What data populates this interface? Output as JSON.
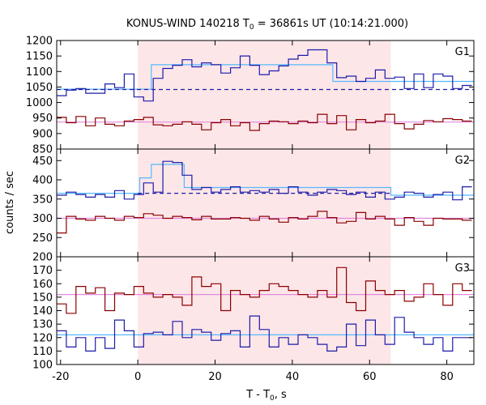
{
  "chart_data": {
    "type": "line",
    "title_main": "KONUS-WIND 140218 T",
    "title_sub": "0",
    "title_rest": " = 36861s UT (10:14:21.000)",
    "xlabel_main": "T - T",
    "xlabel_sub": "0",
    "xlabel_rest": ", s",
    "ylabel": "counts / sec",
    "xlim": [
      -21,
      87
    ],
    "xticks": [
      -20,
      0,
      20,
      40,
      60,
      80
    ],
    "shaded_interval": [
      0,
      65.5
    ],
    "colors": {
      "shade": "#fde6e8",
      "blue": "#1c1ca8",
      "dark_red": "#8b0000",
      "light_blue": "#55b8ff",
      "pink": "#e089e0"
    },
    "edges": [
      -21,
      -18.5,
      -16,
      -13.5,
      -11,
      -8.5,
      -6,
      -3.5,
      -1,
      1.5,
      4,
      6.5,
      9,
      11.5,
      14,
      16.5,
      19,
      21.5,
      24,
      26.5,
      29,
      31.5,
      34,
      36.5,
      39,
      41.5,
      44,
      46.5,
      49,
      51.5,
      54,
      56.5,
      59,
      61.5,
      64,
      66.5,
      69,
      71.5,
      74,
      76.5,
      79,
      81.5,
      84,
      86.5
    ],
    "panels": [
      {
        "label": "G1",
        "ylim": [
          850,
          1200
        ],
        "yticks": [
          850,
          900,
          950,
          1000,
          1050,
          1100,
          1150,
          1200
        ],
        "series": [
          {
            "color": "blue",
            "values": [
              1022,
              1040,
              1045,
              1030,
              1030,
              1060,
              1048,
              1092,
              1018,
              1005,
              1078,
              1110,
              1120,
              1138,
              1115,
              1128,
              1122,
              1095,
              1112,
              1150,
              1120,
              1090,
              1102,
              1118,
              1140,
              1152,
              1170,
              1170,
              1128,
              1080,
              1085,
              1068,
              1078,
              1105,
              1078,
              1082,
              1045,
              1092,
              1048,
              1092,
              1085,
              1045,
              1055
            ]
          },
          {
            "color": "dark_red",
            "values": [
              952,
              935,
              955,
              925,
              950,
              930,
              925,
              940,
              945,
              952,
              928,
              925,
              930,
              938,
              930,
              912,
              935,
              945,
              925,
              935,
              910,
              932,
              940,
              938,
              932,
              940,
              935,
              962,
              932,
              958,
              912,
              945,
              935,
              940,
              962,
              932,
              915,
              930,
              942,
              938,
              948,
              945,
              940
            ]
          }
        ],
        "step_fits": [
          {
            "color": "light_blue",
            "x_start": -21,
            "x_end": 87,
            "levels": [
              [
                -21,
                1043
              ],
              [
                3.5,
                1122
              ],
              [
                50.5,
                1068
              ],
              [
                65.5,
                1068
              ]
            ]
          },
          {
            "color": "pink",
            "x_start": -21,
            "x_end": 87,
            "levels": [
              [
                -21,
                937
              ]
            ]
          }
        ],
        "dashed_baseline": {
          "color": "blue",
          "x_start": -21,
          "x_end": 87,
          "value": 1042
        }
      },
      {
        "label": "G2",
        "ylim": [
          200,
          480
        ],
        "yticks": [
          200,
          250,
          300,
          350,
          400,
          450
        ],
        "series": [
          {
            "color": "blue",
            "values": [
              360,
              368,
              362,
              355,
              362,
              355,
              372,
              350,
              362,
              392,
              368,
              448,
              445,
              412,
              375,
              380,
              368,
              375,
              382,
              368,
              372,
              368,
              375,
              365,
              382,
              368,
              360,
              368,
              375,
              372,
              362,
              368,
              355,
              368,
              350,
              355,
              368,
              365,
              355,
              362,
              368,
              348,
              382
            ]
          },
          {
            "color": "dark_red",
            "values": [
              262,
              305,
              298,
              295,
              305,
              300,
              295,
              305,
              302,
              312,
              308,
              300,
              305,
              302,
              296,
              305,
              298,
              298,
              302,
              300,
              295,
              305,
              298,
              290,
              302,
              298,
              305,
              318,
              302,
              288,
              292,
              315,
              298,
              305,
              298,
              282,
              302,
              292,
              282,
              300,
              298,
              298,
              295
            ]
          }
        ],
        "step_fits": [
          {
            "color": "light_blue",
            "x_start": -21,
            "x_end": 87,
            "levels": [
              [
                -21,
                365
              ],
              [
                0.5,
                405
              ],
              [
                3.5,
                440
              ],
              [
                12,
                380
              ],
              [
                65.5,
                360
              ]
            ]
          },
          {
            "color": "pink",
            "x_start": -21,
            "x_end": 87,
            "levels": [
              [
                -21,
                300
              ]
            ]
          }
        ],
        "dashed_baseline": {
          "color": "blue",
          "x_start": 0,
          "x_end": 65.5,
          "value": 365
        }
      },
      {
        "label": "G3",
        "ylim": [
          100,
          180
        ],
        "yticks": [
          100,
          110,
          120,
          130,
          140,
          150,
          160,
          170
        ],
        "series": [
          {
            "color": "blue",
            "values": [
              125,
              113,
              120,
              110,
              120,
              112,
              133,
              125,
              113,
              123,
              124,
              122,
              132,
              120,
              126,
              124,
              118,
              123,
              125,
              113,
              136,
              126,
              113,
              120,
              115,
              122,
              120,
              115,
              110,
              113,
              130,
              114,
              133,
              122,
              115,
              135,
              124,
              120,
              115,
              120,
              110,
              120,
              120
            ]
          },
          {
            "color": "dark_red",
            "values": [
              145,
              138,
              158,
              153,
              157,
              140,
              153,
              152,
              158,
              153,
              150,
              152,
              150,
              144,
              165,
              158,
              160,
              140,
              155,
              152,
              150,
              155,
              160,
              158,
              155,
              152,
              150,
              155,
              150,
              172,
              146,
              140,
              162,
              155,
              152,
              155,
              147,
              150,
              160,
              152,
              144,
              160,
              155
            ]
          }
        ],
        "step_fits": [
          {
            "color": "light_blue",
            "x_start": -21,
            "x_end": 87,
            "levels": [
              [
                -21,
                122
              ]
            ]
          },
          {
            "color": "pink",
            "x_start": -21,
            "x_end": 87,
            "levels": [
              [
                -21,
                152
              ]
            ]
          }
        ],
        "dashed_baseline": null
      }
    ]
  }
}
